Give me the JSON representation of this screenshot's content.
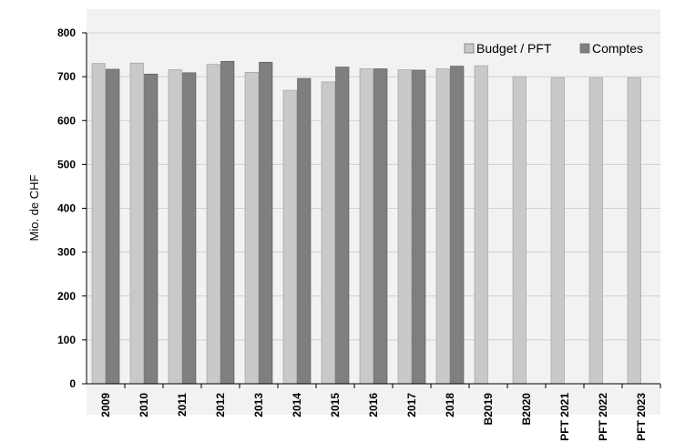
{
  "chart_data": {
    "type": "bar",
    "ylabel": "Mio. de CHF",
    "ylim": [
      0,
      800
    ],
    "yticks": [
      0,
      100,
      200,
      300,
      400,
      500,
      600,
      700,
      800
    ],
    "grid": true,
    "legend_position": "top-right",
    "categories": [
      "2009",
      "2010",
      "2011",
      "2012",
      "2013",
      "2014",
      "2015",
      "2016",
      "2017",
      "2018",
      "B2019",
      "B2020",
      "PFT 2021",
      "PFT 2022",
      "PFT 2023"
    ],
    "series": [
      {
        "name": "Budget / PFT",
        "color": "#c9c9c9",
        "values": [
          730,
          731,
          716,
          728,
          710,
          669,
          688,
          718,
          716,
          718,
          725,
          700,
          698,
          698,
          698
        ]
      },
      {
        "name": "Comptes",
        "color": "#7f7f7f",
        "values": [
          717,
          706,
          709,
          735,
          733,
          696,
          722,
          718,
          715,
          724,
          null,
          null,
          null,
          null,
          null
        ]
      }
    ]
  }
}
